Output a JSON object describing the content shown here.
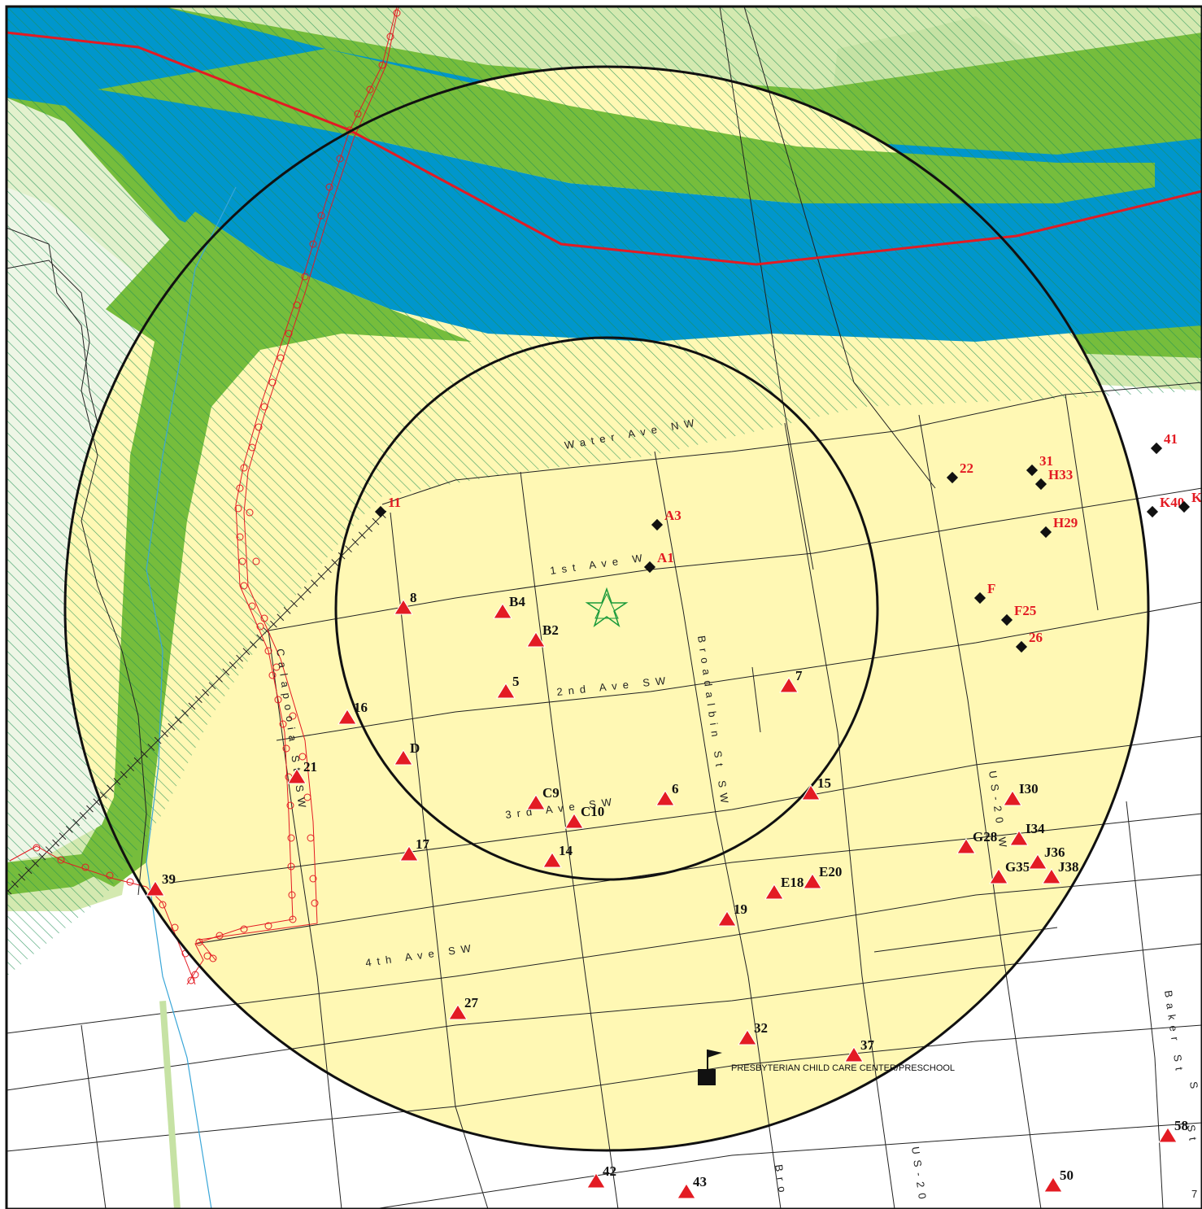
{
  "map": {
    "colors": {
      "river": "#0096cc",
      "floodway": "#76bd3c",
      "floodplain": "#d4e9b0",
      "buffer_fill": "#fff8b4",
      "hatch": "#1f8f55",
      "rail_line": "#e31b23",
      "triangle_marker": "#e31b23",
      "diamond_marker": "#111111",
      "target_star": "#1a9a3a"
    },
    "streets": {
      "water_ave": "Water Ave NW",
      "first_ave": "1st Ave W",
      "second_ave": "2nd Ave SW",
      "third_ave": "3rd Ave SW",
      "fourth_ave": "4th Ave SW",
      "calapooia": "Calapooia St SW",
      "broadalbin": "Broadalbin St SW",
      "us20_a": "US-20 W",
      "us20_b": "US-20",
      "baker": "Baker St",
      "bro": "Bro",
      "edge_s": "S",
      "edge_st": "St"
    },
    "poi": {
      "label": "PRESBYTERIAN CHILD CARE CENTER/PRESCHOOL",
      "icon": "flag-icon"
    },
    "target": {
      "icon": "star-icon"
    },
    "diamond_sites": [
      "A1",
      "A3",
      "11",
      "22",
      "31",
      "H33",
      "H29",
      "F",
      "F25",
      "26",
      "41",
      "K40",
      "K"
    ],
    "triangle_sites": [
      "8",
      "B4",
      "B2",
      "5",
      "16",
      "D",
      "21",
      "7",
      "C9",
      "C10",
      "6",
      "15",
      "17",
      "14",
      "39",
      "E18",
      "E20",
      "19",
      "27",
      "32",
      "37",
      "G28",
      "I30",
      "I34",
      "G35",
      "J36",
      "J38",
      "42",
      "43",
      "50",
      "58"
    ],
    "edge_numbers": [
      "7"
    ]
  }
}
